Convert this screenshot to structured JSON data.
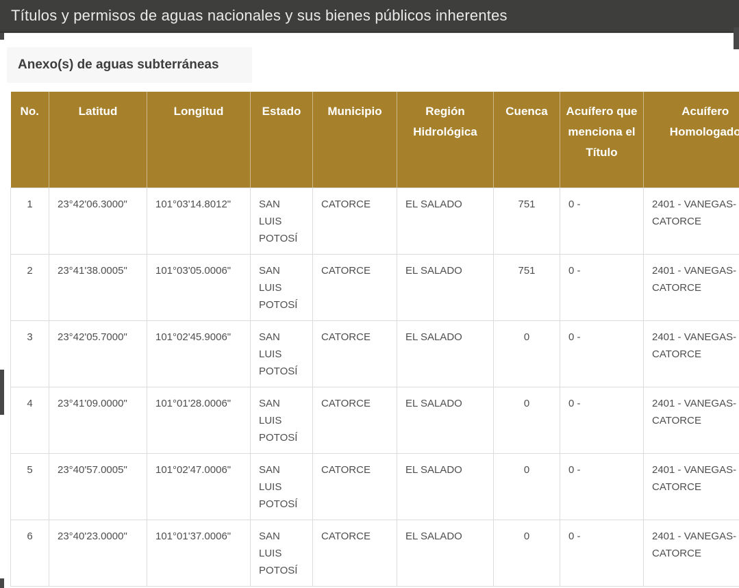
{
  "header": {
    "title": "Títulos y permisos de aguas nacionales y sus bienes públicos inherentes"
  },
  "section": {
    "title": "Anexo(s) de aguas subterráneas"
  },
  "colors": {
    "header_bg": "#3e3e3d",
    "header_text": "#eaeaea",
    "gold": "#a6802a",
    "border": "#dcdcdc",
    "text": "#4e4e4e",
    "tab_bg": "#f7f7f7"
  },
  "table": {
    "columns": [
      "No.",
      "Latitud",
      "Longitud",
      "Estado",
      "Municipio",
      "Región Hidrológica",
      "Cuenca",
      "Acuífero que menciona el Título",
      "Acuífero Homologado"
    ],
    "rows": [
      [
        "1",
        "23°42'06.3000\"",
        "101°03'14.8012\"",
        "SAN LUIS POTOSÍ",
        "CATORCE",
        "EL SALADO",
        "751",
        "0 -",
        "2401 - VANEGAS-CATORCE"
      ],
      [
        "2",
        "23°41'38.0005\"",
        "101°03'05.0006\"",
        "SAN LUIS POTOSÍ",
        "CATORCE",
        "EL SALADO",
        "751",
        "0 -",
        "2401 - VANEGAS-CATORCE"
      ],
      [
        "3",
        "23°42'05.7000\"",
        "101°02'45.9006\"",
        "SAN LUIS POTOSÍ",
        "CATORCE",
        "EL SALADO",
        "0",
        "0 -",
        "2401 - VANEGAS-CATORCE"
      ],
      [
        "4",
        "23°41'09.0000\"",
        "101°01'28.0006\"",
        "SAN LUIS POTOSÍ",
        "CATORCE",
        "EL SALADO",
        "0",
        "0 -",
        "2401 - VANEGAS-CATORCE"
      ],
      [
        "5",
        "23°40'57.0005\"",
        "101°02'47.0006\"",
        "SAN LUIS POTOSÍ",
        "CATORCE",
        "EL SALADO",
        "0",
        "0 -",
        "2401 - VANEGAS-CATORCE"
      ],
      [
        "6",
        "23°40'23.0000\"",
        "101°01'37.0006\"",
        "SAN LUIS POTOSÍ",
        "CATORCE",
        "EL SALADO",
        "0",
        "0 -",
        "2401 - VANEGAS-CATORCE"
      ]
    ],
    "center_columns": [
      0,
      6
    ]
  }
}
